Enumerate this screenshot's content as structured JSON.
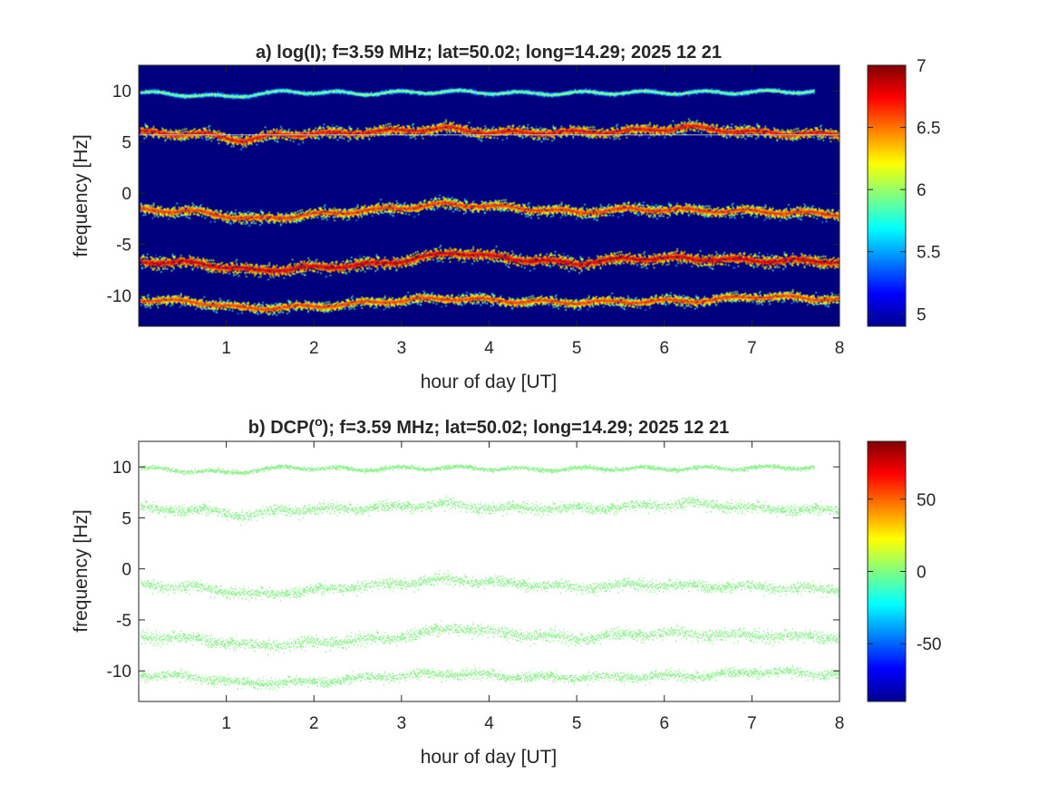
{
  "chart_data": [
    {
      "type": "heatmap",
      "panel_id": "a",
      "title": "a) log(I); f=3.59 MHz;  lat=50.02; long=14.29; 2025 12 21",
      "xlabel": "hour of day [UT]",
      "ylabel": "frequency [Hz]",
      "xlim": [
        0,
        8
      ],
      "ylim": [
        -13,
        12.5
      ],
      "xticks": [
        1,
        2,
        3,
        4,
        5,
        6,
        7,
        8
      ],
      "xtick_labels": [
        "1",
        "2",
        "3",
        "4",
        "5",
        "6",
        "7",
        "8"
      ],
      "yticks": [
        10,
        5,
        0,
        -5,
        -10
      ],
      "ytick_labels": [
        "10",
        "5",
        "0",
        "-5",
        "-10"
      ],
      "background_color": "#00007f",
      "colormap": "jet",
      "colorbar": {
        "range": [
          4.9,
          7.0
        ],
        "ticks": [
          7,
          6.5,
          6,
          5.5,
          5
        ],
        "tick_labels": [
          "7",
          "6.5",
          "6",
          "5.5",
          "5"
        ]
      },
      "bands": [
        {
          "freq_profile": [
            [
              0,
              9.9
            ],
            [
              1,
              9.5
            ],
            [
              1.7,
              10.0
            ],
            [
              2.5,
              9.8
            ],
            [
              3.5,
              10.0
            ],
            [
              4.5,
              9.8
            ],
            [
              5.5,
              9.9
            ],
            [
              6.5,
              9.9
            ],
            [
              7.5,
              10.0
            ]
          ],
          "spread": 0.35,
          "level": 6.2,
          "end": 7.7
        },
        {
          "freq_profile": [
            [
              0,
              6.0
            ],
            [
              0.8,
              5.8
            ],
            [
              1.2,
              5.2
            ],
            [
              1.6,
              5.8
            ],
            [
              2.2,
              5.9
            ],
            [
              3.0,
              6.2
            ],
            [
              3.5,
              6.4
            ],
            [
              4.0,
              6.0
            ],
            [
              4.8,
              6.0
            ],
            [
              5.5,
              6.1
            ],
            [
              6.3,
              6.5
            ],
            [
              7.0,
              6.0
            ],
            [
              8.0,
              5.8
            ]
          ],
          "spread": 0.9,
          "level": 6.9,
          "end": 8.0
        },
        {
          "freq_profile": [
            [
              0,
              -1.5
            ],
            [
              0.7,
              -1.8
            ],
            [
              1.3,
              -2.5
            ],
            [
              2.0,
              -2.0
            ],
            [
              2.8,
              -1.5
            ],
            [
              3.5,
              -1.0
            ],
            [
              4.2,
              -1.3
            ],
            [
              5.0,
              -1.8
            ],
            [
              5.6,
              -1.5
            ],
            [
              6.3,
              -1.6
            ],
            [
              7.0,
              -1.7
            ],
            [
              8.0,
              -2.0
            ]
          ],
          "spread": 0.9,
          "level": 6.8,
          "end": 8.0
        },
        {
          "freq_profile": [
            [
              0,
              -6.6
            ],
            [
              0.7,
              -6.8
            ],
            [
              1.3,
              -7.5
            ],
            [
              2.0,
              -7.2
            ],
            [
              2.8,
              -6.8
            ],
            [
              3.6,
              -5.7
            ],
            [
              4.2,
              -6.3
            ],
            [
              5.0,
              -6.8
            ],
            [
              5.6,
              -6.3
            ],
            [
              6.2,
              -6.3
            ],
            [
              7.0,
              -6.5
            ],
            [
              8.0,
              -6.6
            ]
          ],
          "spread": 1.0,
          "level": 6.95,
          "end": 8.0
        },
        {
          "freq_profile": [
            [
              0,
              -10.3
            ],
            [
              0.7,
              -10.6
            ],
            [
              1.2,
              -11.2
            ],
            [
              2.0,
              -11.0
            ],
            [
              2.8,
              -10.5
            ],
            [
              3.5,
              -10.2
            ],
            [
              4.3,
              -10.5
            ],
            [
              5.0,
              -10.6
            ],
            [
              5.8,
              -10.5
            ],
            [
              6.5,
              -10.4
            ],
            [
              7.0,
              -10.0
            ],
            [
              8.0,
              -10.3
            ]
          ],
          "spread": 0.8,
          "level": 6.8,
          "end": 8.0
        }
      ],
      "reference_line_freq": 5.7
    },
    {
      "type": "heatmap",
      "panel_id": "b",
      "title_prefix": "b) DCP(",
      "title_superscript": "o",
      "title_suffix": "); f=3.59 MHz;  lat=50.02; long=14.29; 2025 12 21",
      "xlabel": "hour of day [UT]",
      "ylabel": "frequency [Hz]",
      "xlim": [
        0,
        8
      ],
      "ylim": [
        -13,
        12.5
      ],
      "xticks": [
        1,
        2,
        3,
        4,
        5,
        6,
        7,
        8
      ],
      "xtick_labels": [
        "1",
        "2",
        "3",
        "4",
        "5",
        "6",
        "7",
        "8"
      ],
      "yticks": [
        10,
        5,
        0,
        -5,
        -10
      ],
      "ytick_labels": [
        "10",
        "5",
        "0",
        "-5",
        "-10"
      ],
      "background_color": "#ffffff",
      "band_color": "#8ff08f",
      "colormap": "jet",
      "colorbar": {
        "range": [
          -90,
          90
        ],
        "ticks": [
          50,
          0,
          -50
        ],
        "tick_labels": [
          "50",
          "0",
          "-50"
        ]
      }
    }
  ]
}
